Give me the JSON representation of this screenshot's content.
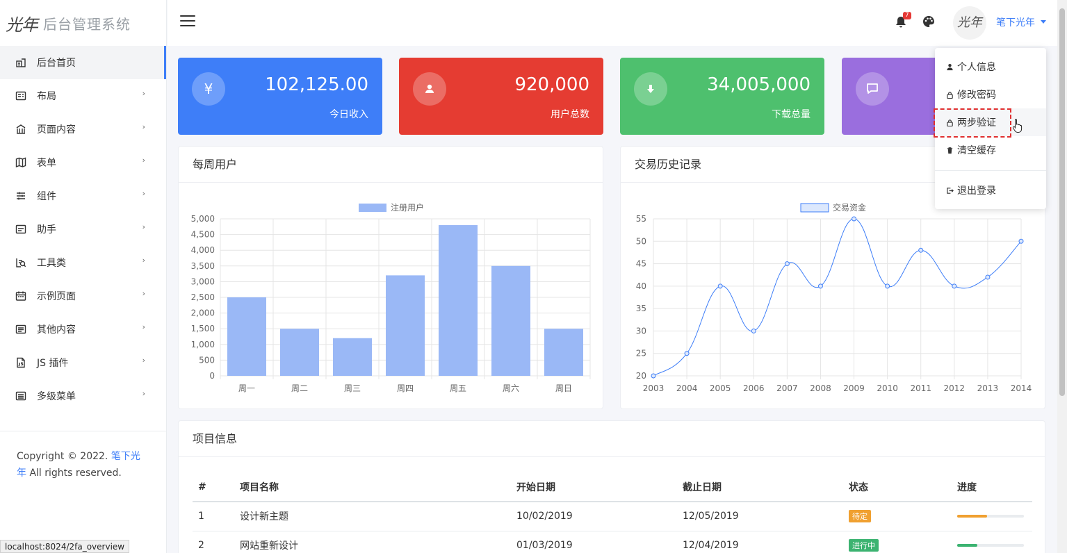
{
  "brand": {
    "logo": "光年",
    "title": "后台管理系统"
  },
  "sidebar": {
    "items": [
      {
        "label": "后台首页"
      },
      {
        "label": "布局",
        "arrow": "›"
      },
      {
        "label": "页面内容",
        "arrow": "›"
      },
      {
        "label": "表单",
        "arrow": "›"
      },
      {
        "label": "组件",
        "arrow": "›"
      },
      {
        "label": "助手",
        "arrow": "›"
      },
      {
        "label": "工具类",
        "arrow": "›"
      },
      {
        "label": "示例页面",
        "arrow": "›"
      },
      {
        "label": "其他内容",
        "arrow": "›"
      },
      {
        "label": "JS 插件",
        "arrow": "›"
      },
      {
        "label": "多级菜单",
        "arrow": "›"
      }
    ],
    "footer": {
      "prefix": "Copyright © 2022.",
      "link": "笔下光年",
      "suffix": "All rights reserved."
    }
  },
  "topbar": {
    "notification_count": "7",
    "avatar_text": "光年",
    "user_name": "笔下光年"
  },
  "stats": [
    {
      "icon": "¥",
      "value": "102,125.00",
      "label": "今日收入",
      "color": "#3e7ef8"
    },
    {
      "icon": "user-icon",
      "value": "920,000",
      "label": "用户总数",
      "color": "#e53c32"
    },
    {
      "icon": "download-icon",
      "value": "34,005,000",
      "label": "下载总量",
      "color": "#4ec06e"
    },
    {
      "icon": "comment-icon",
      "value": "",
      "label": "",
      "color": "#9a6ede"
    }
  ],
  "weekly_chart": {
    "title": "每周用户",
    "chart_data": {
      "type": "bar",
      "categories": [
        "周一",
        "周二",
        "周三",
        "周四",
        "周五",
        "周六",
        "周日"
      ],
      "series": [
        {
          "name": "注册用户",
          "values": [
            2500,
            1500,
            1200,
            3200,
            4800,
            3500,
            1500
          ]
        }
      ],
      "ylim": [
        0,
        5000
      ],
      "yticks": [
        "0",
        "500",
        "1,000",
        "1,500",
        "2,000",
        "2,500",
        "3,000",
        "3,500",
        "4,000",
        "4,500",
        "5,000"
      ],
      "legend": "top-center",
      "grid": true,
      "color": "#9ab8f6"
    }
  },
  "history_chart": {
    "title": "交易历史记录",
    "chart_data": {
      "type": "line",
      "x": [
        "2003",
        "2004",
        "2005",
        "2006",
        "2007",
        "2008",
        "2009",
        "2010",
        "2011",
        "2012",
        "2013",
        "2014"
      ],
      "series": [
        {
          "name": "交易资金",
          "values": [
            20,
            25,
            40,
            30,
            45,
            40,
            55,
            40,
            48,
            40,
            42,
            50
          ]
        }
      ],
      "ylim": [
        20,
        55
      ],
      "yticks": [
        "20",
        "25",
        "30",
        "35",
        "40",
        "45",
        "50",
        "55"
      ],
      "legend": "top-center",
      "grid": true,
      "color": "#3e7ef8"
    }
  },
  "projects": {
    "title": "项目信息",
    "headers": [
      "#",
      "项目名称",
      "开始日期",
      "截止日期",
      "状态",
      "进度"
    ],
    "rows": [
      {
        "id": "1",
        "name": "设计新主题",
        "start": "10/02/2019",
        "end": "12/05/2019",
        "status": "待定",
        "status_color": "#f0a030",
        "progress": 0.45,
        "progress_color": "#f0a030"
      },
      {
        "id": "2",
        "name": "网站重新设计",
        "start": "01/03/2019",
        "end": "12/04/2019",
        "status": "进行中",
        "status_color": "#3cb371",
        "progress": 0.3,
        "progress_color": "#3cb371"
      }
    ]
  },
  "user_menu": {
    "items": [
      "个人信息",
      "修改密码",
      "两步验证",
      "清空缓存",
      "退出登录"
    ]
  },
  "status_url": "localhost:8024/2fa_overview"
}
